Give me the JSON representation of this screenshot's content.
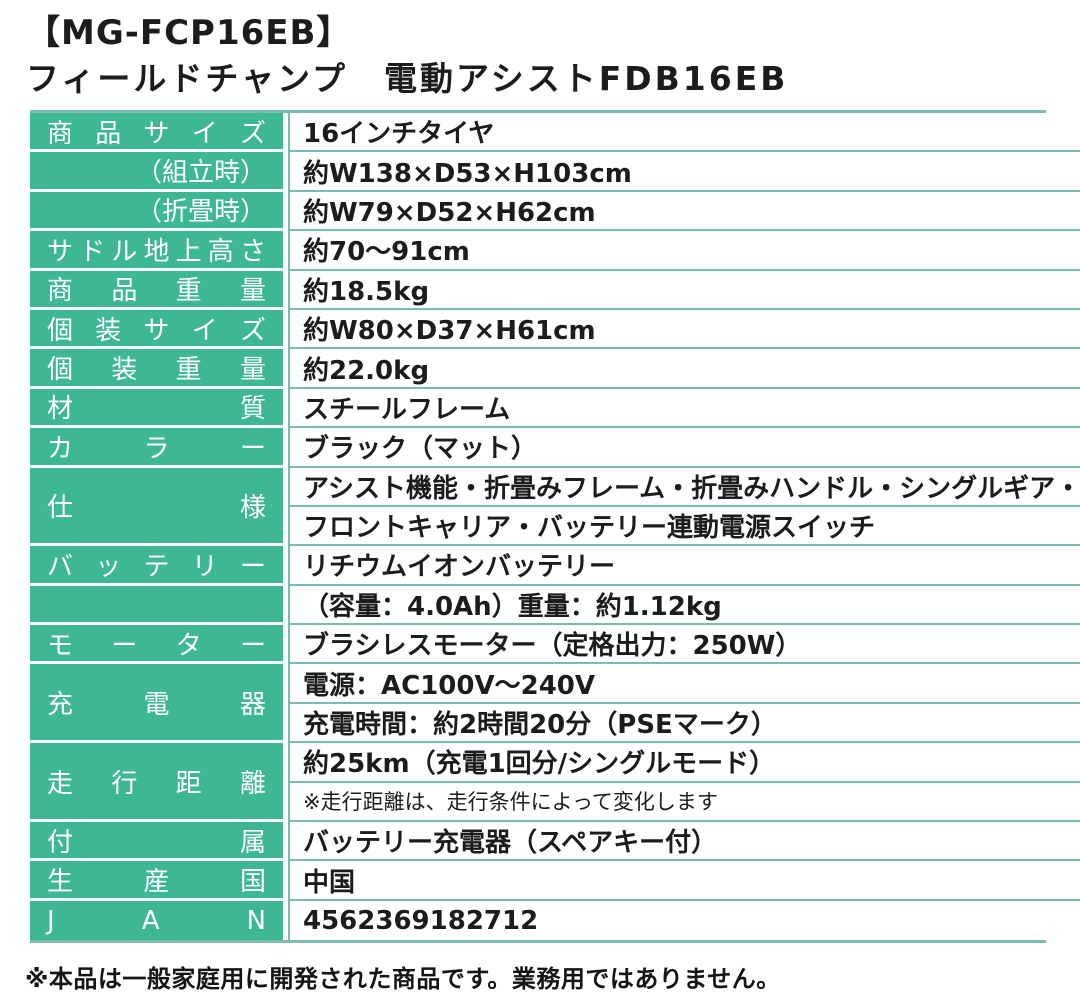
{
  "page": {
    "title": "【MG-FCP16EB】",
    "subtitle": "フィールドチャンプ　電動アシストFDB16EB",
    "footnote": "※本品は一般家庭用に開発された商品です。業務用ではありません。"
  },
  "colors": {
    "cell_green": "#3db794",
    "border_teal": "#7cbcb0",
    "label_text": "#ffffff",
    "value_text": "#1c1c1c"
  },
  "spec_table": {
    "rows": [
      {
        "label": "商品サイズ",
        "label_style": "justify",
        "values": [
          "16インチタイヤ"
        ]
      },
      {
        "label": "（組立時）",
        "label_style": "right",
        "values": [
          "約W138×D53×H103cm"
        ]
      },
      {
        "label": "（折畳時）",
        "label_style": "right",
        "values": [
          "約W79×D52×H62cm"
        ]
      },
      {
        "label": "サドル地上高さ",
        "label_style": "justify",
        "values": [
          "約70～91cm"
        ]
      },
      {
        "label": "商品重量",
        "label_style": "justify",
        "values": [
          "約18.5kg"
        ]
      },
      {
        "label": "個装サイズ",
        "label_style": "justify",
        "values": [
          "約W80×D37×H61cm"
        ]
      },
      {
        "label": "個装重量",
        "label_style": "justify",
        "values": [
          "約22.0kg"
        ]
      },
      {
        "label": "材質",
        "label_style": "justify",
        "values": [
          "スチールフレーム"
        ]
      },
      {
        "label": "カラー",
        "label_style": "justify",
        "values": [
          "ブラック（マット）"
        ]
      },
      {
        "label": "仕様",
        "label_style": "justify",
        "values": [
          "アシスト機能・折畳みフレーム・折畳みハンドル・シングルギア・",
          "フロントキャリア・バッテリー連動電源スイッチ"
        ]
      },
      {
        "label": "バッテリー",
        "label_style": "justify",
        "values": [
          "リチウムイオンバッテリー"
        ]
      },
      {
        "label": "",
        "label_style": "justify",
        "values": [
          "（容量：4.0Ah）重量：約1.12kg"
        ]
      },
      {
        "label": "モーター",
        "label_style": "justify",
        "values": [
          "ブラシレスモーター（定格出力：250W）"
        ]
      },
      {
        "label": "充電器",
        "label_style": "justify",
        "values": [
          "電源：AC100V～240V",
          "充電時間：約2時間20分（PSEマーク）"
        ]
      },
      {
        "label": "走行距離",
        "label_style": "justify",
        "values": [
          "約25km（充電1回分/シングルモード）",
          {
            "text": "※走行距離は、走行条件によって変化します",
            "small": true
          }
        ]
      },
      {
        "label": "付属",
        "label_style": "justify",
        "values": [
          "バッテリー充電器（スペアキー付）"
        ]
      },
      {
        "label": "生産国",
        "label_style": "justify",
        "values": [
          "中国"
        ]
      },
      {
        "label": "JAN",
        "label_style": "justify",
        "values": [
          "4562369182712"
        ]
      }
    ]
  }
}
